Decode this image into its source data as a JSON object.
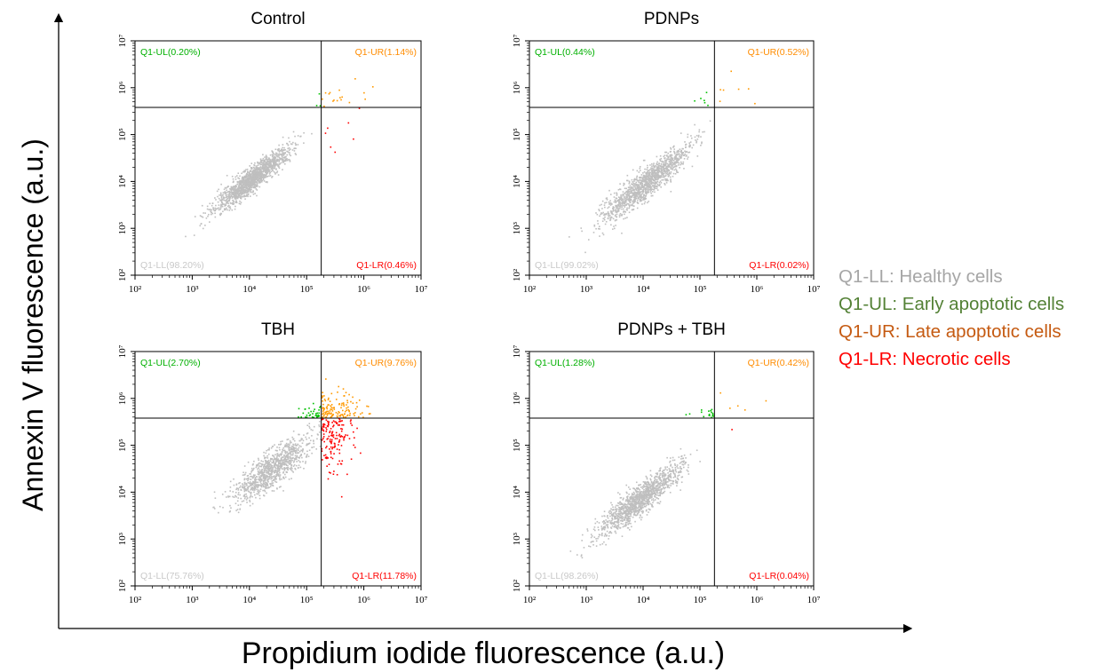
{
  "figure": {
    "xlabel": "Propidium iodide fluorescence (a.u.)",
    "ylabel": "Annexin V fluorescence (a.u.)"
  },
  "legend": [
    {
      "text": "Q1-LL: Healthy cells",
      "color": "#a6a6a6"
    },
    {
      "text": "Q1-UL: Early apoptotic cells",
      "color": "#538135"
    },
    {
      "text": "Q1-UR: Late apoptotic cells",
      "color": "#c55a11"
    },
    {
      "text": "Q1-LR: Necrotic cells",
      "color": "#ff0000"
    }
  ],
  "colors": {
    "LL": "#bfbfbf",
    "UL": "#00c000",
    "UR": "#ff9900",
    "LR": "#ff0000",
    "gate": "#000000"
  },
  "chart_data": [
    {
      "type": "scatter",
      "title": "Control",
      "xscale": "log",
      "yscale": "log",
      "xlim": [
        100,
        10000000
      ],
      "ylim": [
        100,
        10000000
      ],
      "x_ticks": [
        "10²",
        "10³",
        "10⁴",
        "10⁵",
        "10⁶",
        "10⁷"
      ],
      "y_ticks": [
        "10²",
        "10³",
        "10⁴",
        "10⁵",
        "10⁶",
        "10⁷"
      ],
      "gate": {
        "x": 180000,
        "y": 380000
      },
      "quadrant_labels": {
        "UL": "Q1-UL(0.20%)",
        "UR": "Q1-UR(1.14%)",
        "LL": "Q1-LL(98.20%)",
        "LR": "Q1-LR(0.46%)"
      },
      "quadrant_percent": {
        "UL": 0.2,
        "UR": 1.14,
        "LL": 98.2,
        "LR": 0.46
      }
    },
    {
      "type": "scatter",
      "title": "PDNPs",
      "xscale": "log",
      "yscale": "log",
      "xlim": [
        100,
        10000000
      ],
      "ylim": [
        100,
        10000000
      ],
      "x_ticks": [
        "10²",
        "10³",
        "10⁴",
        "10⁵",
        "10⁶",
        "10⁷"
      ],
      "y_ticks": [
        "10²",
        "10³",
        "10⁴",
        "10⁵",
        "10⁶",
        "10⁷"
      ],
      "gate": {
        "x": 180000,
        "y": 380000
      },
      "quadrant_labels": {
        "UL": "Q1-UL(0.44%)",
        "UR": "Q1-UR(0.52%)",
        "LL": "Q1-LL(99.02%)",
        "LR": "Q1-LR(0.02%)"
      },
      "quadrant_percent": {
        "UL": 0.44,
        "UR": 0.52,
        "LL": 99.02,
        "LR": 0.02
      }
    },
    {
      "type": "scatter",
      "title": "TBH",
      "xscale": "log",
      "yscale": "log",
      "xlim": [
        100,
        10000000
      ],
      "ylim": [
        100,
        10000000
      ],
      "x_ticks": [
        "10²",
        "10³",
        "10⁴",
        "10⁵",
        "10⁶",
        "10⁷"
      ],
      "y_ticks": [
        "10²",
        "10³",
        "10⁴",
        "10⁵",
        "10⁶",
        "10⁷"
      ],
      "gate": {
        "x": 180000,
        "y": 380000
      },
      "quadrant_labels": {
        "UL": "Q1-UL(2.70%)",
        "UR": "Q1-UR(9.76%)",
        "LL": "Q1-LL(75.76%)",
        "LR": "Q1-LR(11.78%)"
      },
      "quadrant_percent": {
        "UL": 2.7,
        "UR": 9.76,
        "LL": 75.76,
        "LR": 11.78
      }
    },
    {
      "type": "scatter",
      "title": "PDNPs + TBH",
      "xscale": "log",
      "yscale": "log",
      "xlim": [
        100,
        10000000
      ],
      "ylim": [
        100,
        10000000
      ],
      "x_ticks": [
        "10²",
        "10³",
        "10⁴",
        "10⁵",
        "10⁶",
        "10⁷"
      ],
      "y_ticks": [
        "10²",
        "10³",
        "10⁴",
        "10⁵",
        "10⁶",
        "10⁷"
      ],
      "gate": {
        "x": 180000,
        "y": 380000
      },
      "quadrant_labels": {
        "UL": "Q1-UL(1.28%)",
        "UR": "Q1-UR(0.42%)",
        "LL": "Q1-LL(98.26%)",
        "LR": "Q1-LR(0.04%)"
      },
      "quadrant_percent": {
        "UL": 1.28,
        "UR": 0.42,
        "LL": 98.26,
        "LR": 0.04
      }
    }
  ]
}
